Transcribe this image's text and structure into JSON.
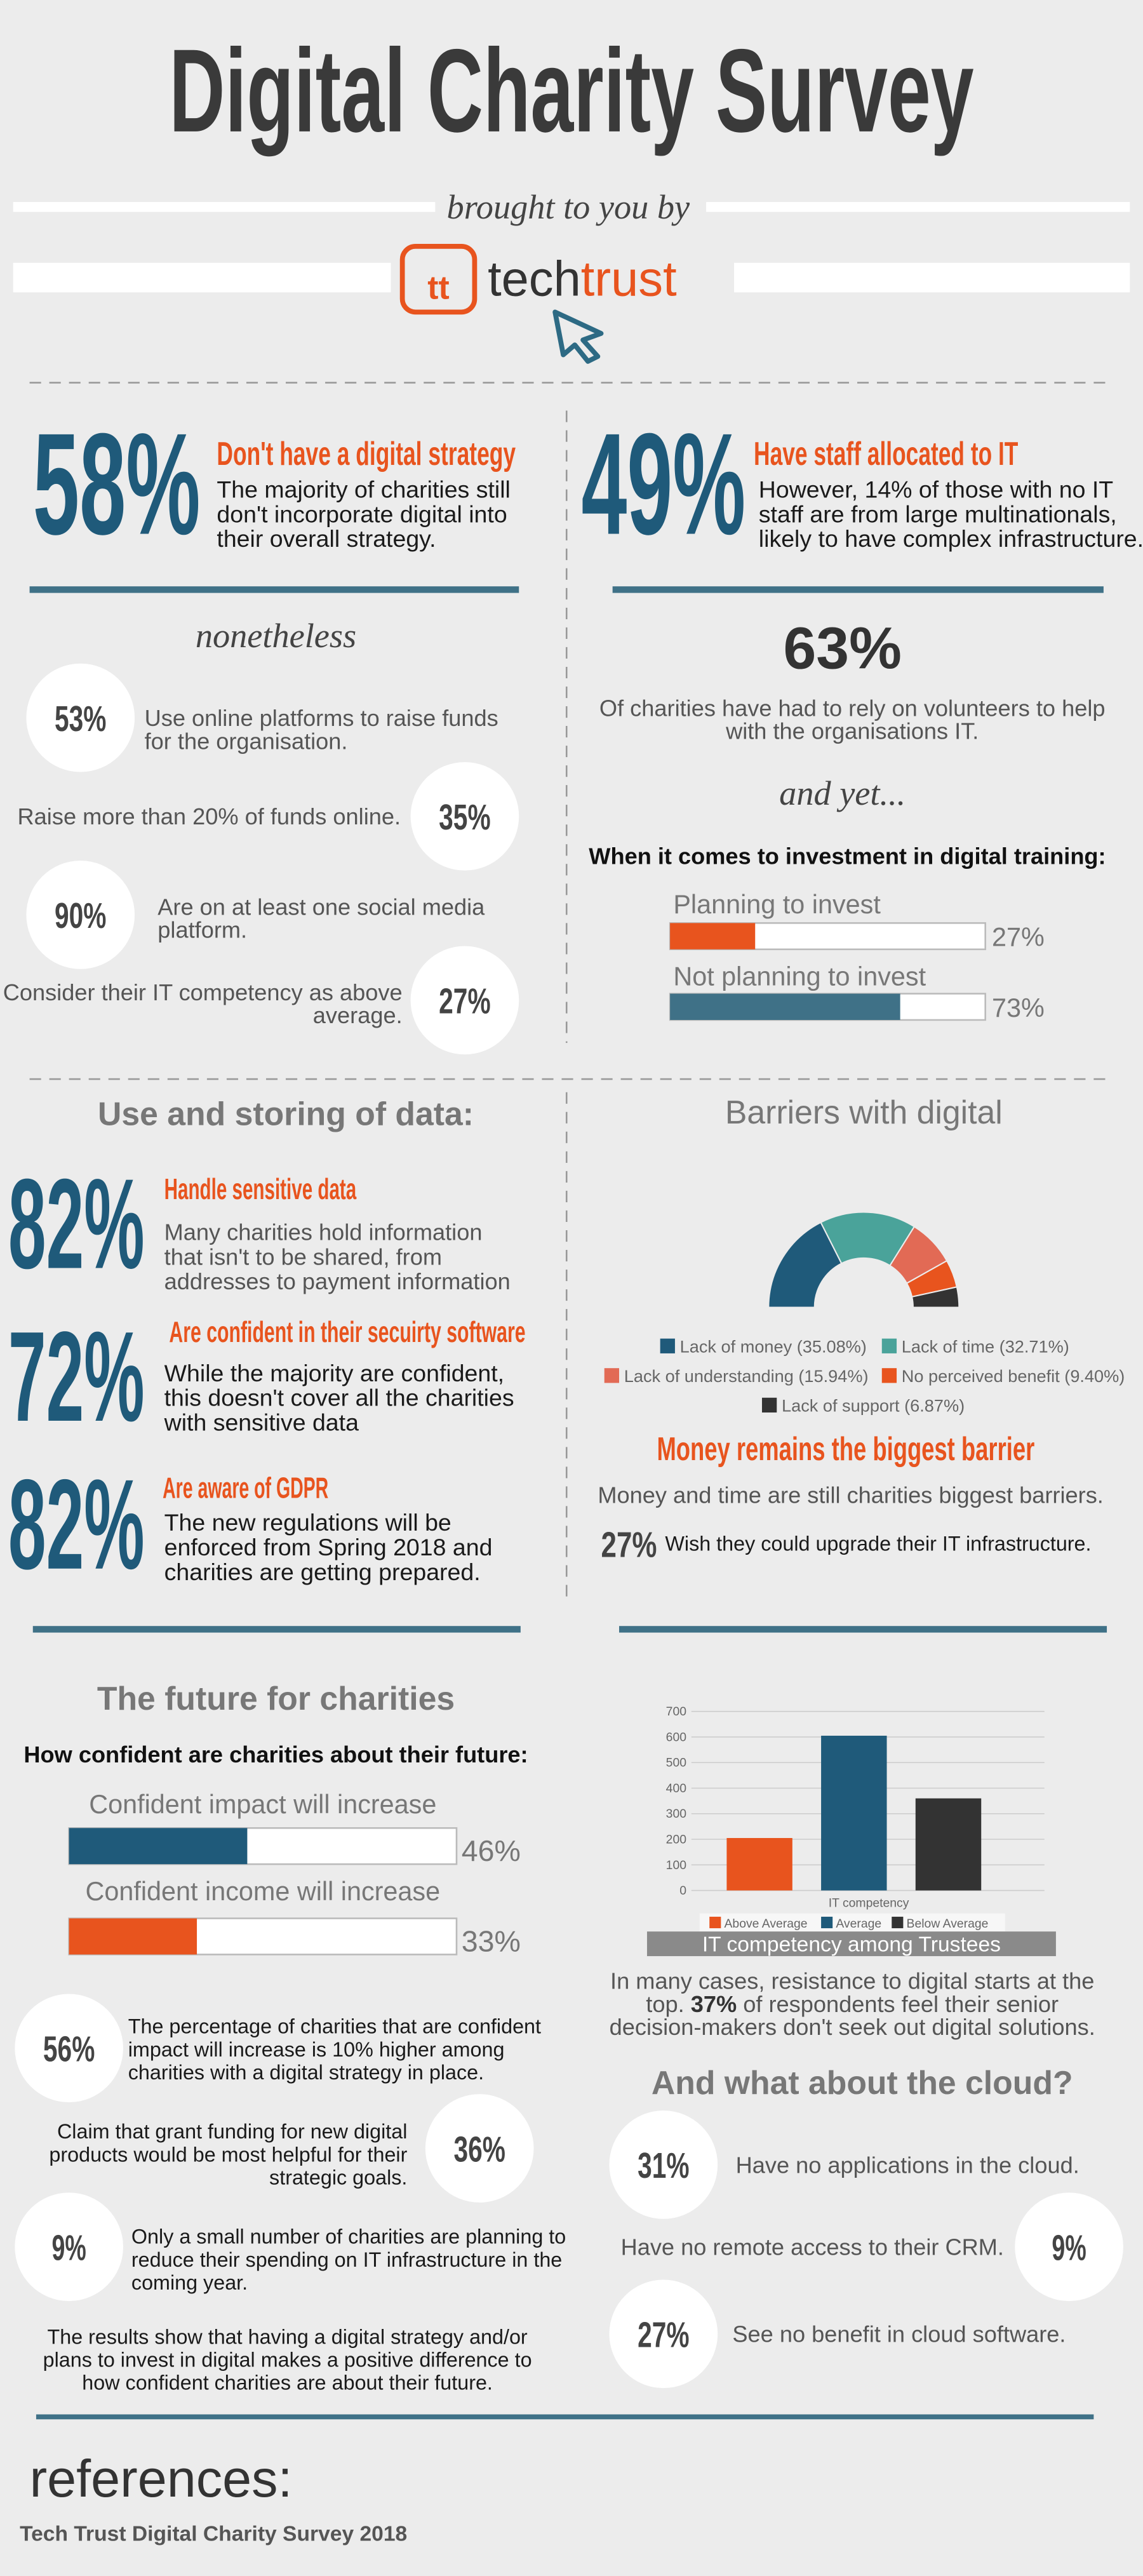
{
  "header": {
    "title": "Digital Charity Survey",
    "byline": "brought to you by",
    "logo_mark": "tt",
    "logo_tech": "tech",
    "logo_trust": "trust"
  },
  "strategy": {
    "stat": "58%",
    "heading": "Don't have a digital strategy",
    "lines": [
      "The majority of charities still",
      "don't incorporate digital into",
      "their overall strategy."
    ]
  },
  "staff": {
    "stat": "49%",
    "heading": "Have staff allocated to IT",
    "lines": [
      "However, 14% of those with no IT",
      "staff are from large multinationals,",
      "likely to have complex infrastructure."
    ]
  },
  "online": {
    "heading": "nonetheless",
    "items": [
      {
        "stat": "53%",
        "lines": [
          "Use online platforms to raise funds",
          "for the organisation."
        ]
      },
      {
        "stat": "35%",
        "lines": [
          "Raise more than 20% of funds online."
        ]
      },
      {
        "stat": "90%",
        "lines": [
          "Are on at least one social media",
          "platform."
        ]
      },
      {
        "stat": "27%",
        "lines": [
          "Consider their IT competency as above",
          "average."
        ]
      }
    ]
  },
  "volunteers": {
    "stat": "63%",
    "lines": [
      "Of charities have had to rely on volunteers to help",
      "with the organisations IT."
    ],
    "connector": "and yet...",
    "question": "When it comes to investment in digital training:"
  },
  "data_use": {
    "heading": "Use and storing of data:",
    "items": [
      {
        "stat": "82%",
        "heading": "Handle sensitive data",
        "lines": [
          "Many charities hold information",
          "that isn't to be shared, from",
          "addresses to payment information"
        ]
      },
      {
        "stat": "72%",
        "heading": "Are confident in their secuirty software",
        "lines": [
          "While the majority are confident,",
          "this doesn't cover all the charities",
          "with sensitive data"
        ]
      },
      {
        "stat": "82%",
        "heading": "Are aware of GDPR",
        "lines": [
          "The new regulations will be",
          "enforced from Spring 2018 and",
          "charities are getting prepared."
        ]
      }
    ]
  },
  "barriers": {
    "heading": "Barriers with digital",
    "subheading": "Money remains the biggest barrier",
    "text": "Money and time are still charities biggest barriers.",
    "stat": "27%",
    "stat_text": "Wish they could upgrade their IT infrastructure."
  },
  "future": {
    "heading": "The future for charities",
    "question": "How confident are charities about their future:",
    "items": [
      {
        "stat": "56%",
        "lines": [
          "The percentage of charities that are confident",
          "impact will increase is 10% higher among",
          "charities with a digital strategy in place."
        ]
      },
      {
        "stat": "36%",
        "lines": [
          "Claim that grant funding for new digital",
          "products would be most helpful for their",
          "strategic goals."
        ]
      },
      {
        "stat": "9%",
        "lines": [
          "Only a small number of charities are planning to",
          "reduce their spending on IT infrastructure in the",
          "coming year."
        ]
      }
    ],
    "conclusion": [
      "The results show that having a digital strategy and/or",
      "plans to invest in digital makes a positive difference to",
      "how confident charities are about their future."
    ]
  },
  "trustees": {
    "lines": [
      [
        "In many cases, resistance to digital starts at the"
      ],
      [
        "top. ",
        "37%",
        " of respondents feel their senior"
      ],
      [
        "decision-makers don't seek out digital solutions."
      ]
    ]
  },
  "cloud": {
    "heading": "And what about the cloud?",
    "items": [
      {
        "stat": "31%",
        "text": "Have no applications in the cloud."
      },
      {
        "stat": "9%",
        "text": "Have no remote access to their CRM."
      },
      {
        "stat": "27%",
        "text": "See no benefit in cloud software."
      }
    ]
  },
  "references": {
    "heading": "references:",
    "source": "Tech Trust Digital Charity Survey 2018"
  },
  "chart_data": [
    {
      "type": "bar",
      "orientation": "horizontal",
      "categories": [
        "Planning to invest",
        "Not planning to invest"
      ],
      "values": [
        27,
        73
      ],
      "value_labels": [
        "27%",
        "73%"
      ],
      "colors": [
        "#e8541e",
        "#3f7187"
      ],
      "xlim": [
        0,
        100
      ]
    },
    {
      "type": "donut",
      "categories": [
        "Lack of money (35.08%)",
        "Lack of time (32.71%)",
        "Lack of understanding (15.94%)",
        "No perceived benefit (9.40%)",
        "Lack of support (6.87%)"
      ],
      "values": [
        35.08,
        32.71,
        15.94,
        9.4,
        6.87
      ],
      "colors": [
        "#1f5a7a",
        "#4aa39a",
        "#e26a55",
        "#e8541e",
        "#333333"
      ]
    },
    {
      "type": "bar",
      "orientation": "horizontal",
      "categories": [
        "Confident impact will increase",
        "Confident income will increase"
      ],
      "values": [
        46,
        33
      ],
      "value_labels": [
        "46%",
        "33%"
      ],
      "colors": [
        "#1f5a7a",
        "#e8541e"
      ],
      "xlim": [
        0,
        100
      ]
    },
    {
      "type": "bar",
      "title": "IT competency among Trustees",
      "categories": [
        "IT competency"
      ],
      "series": [
        {
          "name": "Above Average",
          "color": "#e8541e",
          "values": [
            205
          ]
        },
        {
          "name": "Average",
          "color": "#1f5a7a",
          "values": [
            605
          ]
        },
        {
          "name": "Below Average",
          "color": "#333333",
          "values": [
            360
          ]
        }
      ],
      "ylim": [
        0,
        700
      ],
      "yticks": [
        0,
        100,
        200,
        300,
        400,
        500,
        600,
        700
      ],
      "grid": true
    }
  ]
}
